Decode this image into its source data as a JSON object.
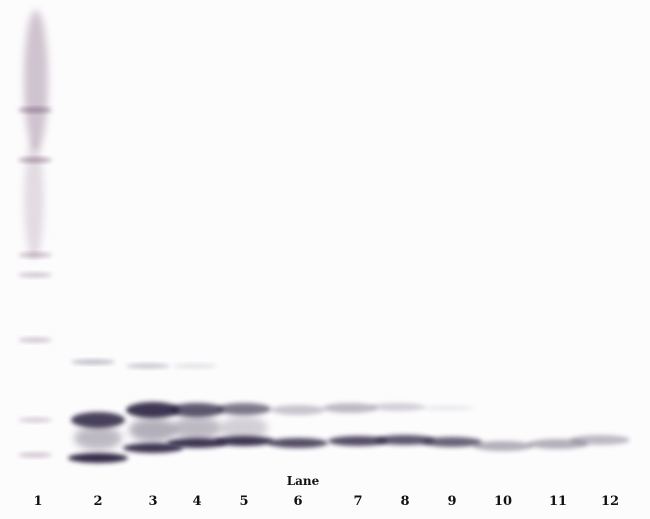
{
  "axis_title": "Lane",
  "lanes": [
    "1",
    "2",
    "3",
    "4",
    "5",
    "6",
    "7",
    "8",
    "9",
    "10",
    "11",
    "12"
  ],
  "colors": {
    "band": "#2a2340",
    "marker": "#7a5a78",
    "background": "#fdfcfd"
  }
}
